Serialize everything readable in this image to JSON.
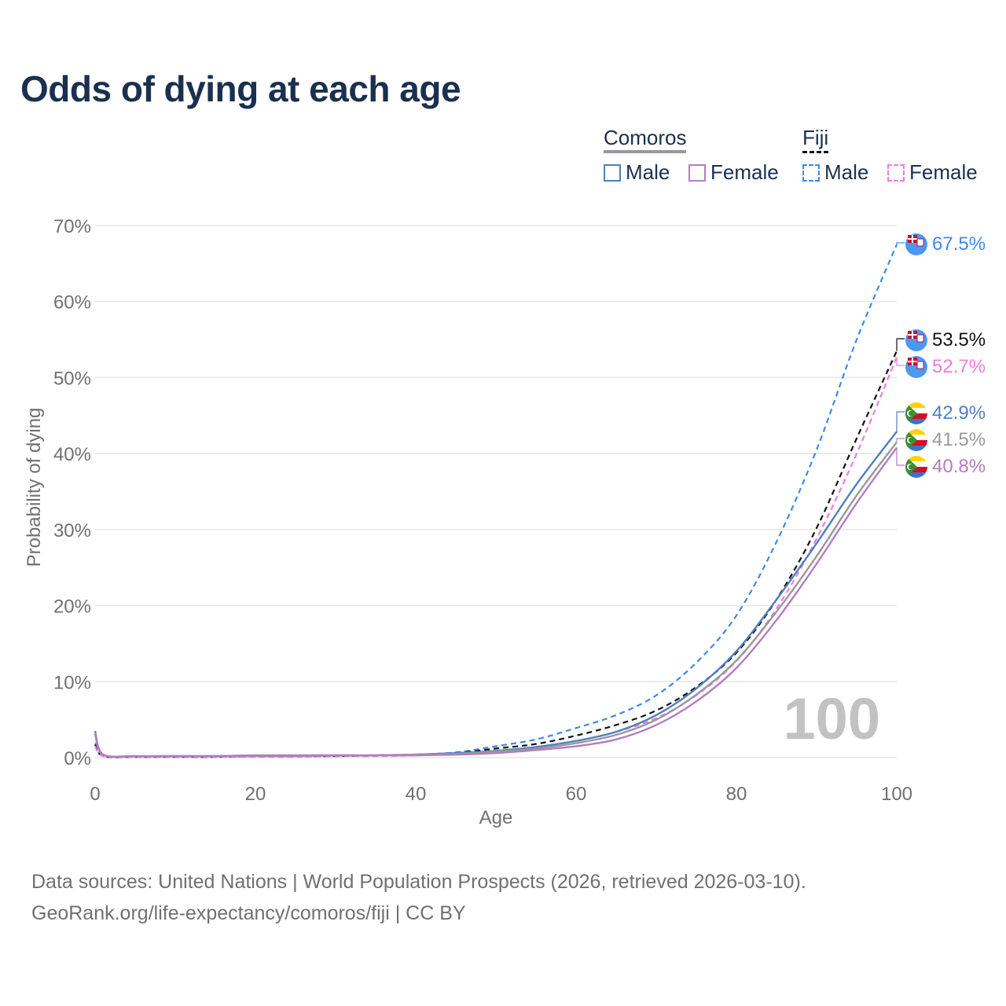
{
  "title": "Odds of dying at each age",
  "legend": {
    "groups": [
      {
        "name": "Comoros",
        "items": [
          {
            "label": "Male"
          },
          {
            "label": "Female"
          }
        ]
      },
      {
        "name": "Fiji",
        "items": [
          {
            "label": "Male"
          },
          {
            "label": "Female"
          }
        ]
      }
    ]
  },
  "colors": {
    "comoros_male": "#4f7fc0",
    "comoros_female": "#b47cc0",
    "comoros_total": "#999999",
    "fiji_male": "#3d8be8",
    "fiji_female": "#f07be0",
    "fiji_total": "#111111",
    "grid": "#e6e6e6",
    "axis_text": "#707070",
    "title": "#1b3050",
    "watermark": "#c2c2c2"
  },
  "chart_data": {
    "type": "line",
    "xlabel": "Age",
    "ylabel": "Probability of dying",
    "xlim": [
      0,
      100
    ],
    "ylim": [
      0,
      70
    ],
    "xticks": [
      "0",
      "20",
      "40",
      "60",
      "80",
      "100"
    ],
    "yticks": [
      "0%",
      "10%",
      "20%",
      "30%",
      "40%",
      "50%",
      "60%",
      "70%"
    ],
    "grid": true,
    "watermark": "100",
    "x": [
      0,
      1,
      5,
      10,
      15,
      20,
      25,
      30,
      35,
      40,
      45,
      50,
      55,
      60,
      65,
      70,
      75,
      80,
      85,
      90,
      95,
      100
    ],
    "series": [
      {
        "key": "fiji_male",
        "name": "Fiji Male",
        "dash": true,
        "end_label": "67.5%",
        "values": [
          1.9,
          0.2,
          0.1,
          0.1,
          0.1,
          0.2,
          0.2,
          0.2,
          0.3,
          0.4,
          0.7,
          1.5,
          2.4,
          3.9,
          5.6,
          8.2,
          12.5,
          18.7,
          28.4,
          40.5,
          55.0,
          67.5
        ]
      },
      {
        "key": "fiji_total",
        "name": "Fiji",
        "dash": true,
        "end_label": "53.5%",
        "values": [
          1.7,
          0.2,
          0.1,
          0.1,
          0.1,
          0.2,
          0.2,
          0.2,
          0.3,
          0.4,
          0.6,
          1.2,
          1.8,
          2.9,
          4.3,
          6.2,
          9.3,
          13.8,
          20.8,
          30.2,
          42.0,
          53.5
        ]
      },
      {
        "key": "fiji_female",
        "name": "Fiji Female",
        "dash": true,
        "end_label": "52.7%",
        "values": [
          1.5,
          0.2,
          0.1,
          0.1,
          0.1,
          0.1,
          0.1,
          0.2,
          0.2,
          0.3,
          0.5,
          0.9,
          1.4,
          2.2,
          3.4,
          5.2,
          8.2,
          12.7,
          19.6,
          28.8,
          40.0,
          52.7
        ]
      },
      {
        "key": "comoros_male",
        "name": "Comoros Male",
        "dash": false,
        "end_label": "42.9%",
        "values": [
          3.5,
          0.4,
          0.2,
          0.2,
          0.2,
          0.3,
          0.3,
          0.3,
          0.3,
          0.4,
          0.6,
          0.9,
          1.4,
          2.2,
          3.4,
          5.6,
          9.1,
          14.0,
          20.8,
          28.2,
          36.0,
          42.9
        ]
      },
      {
        "key": "comoros_total",
        "name": "Comoros",
        "dash": false,
        "end_label": "41.5%",
        "values": [
          3.3,
          0.4,
          0.2,
          0.2,
          0.2,
          0.3,
          0.3,
          0.3,
          0.3,
          0.4,
          0.5,
          0.8,
          1.2,
          1.9,
          3.0,
          5.0,
          8.3,
          12.8,
          19.2,
          26.5,
          34.5,
          41.5
        ]
      },
      {
        "key": "comoros_female",
        "name": "Comoros Female",
        "dash": false,
        "end_label": "40.8%",
        "values": [
          3.1,
          0.4,
          0.2,
          0.2,
          0.2,
          0.2,
          0.2,
          0.3,
          0.3,
          0.3,
          0.4,
          0.6,
          1.0,
          1.5,
          2.4,
          4.3,
          7.4,
          11.8,
          18.1,
          25.5,
          33.5,
          40.8
        ]
      }
    ]
  },
  "source": {
    "line1": "Data sources: United Nations | World Population Prospects (2026, retrieved 2026-03-10).",
    "line2": "GeoRank.org/life-expectancy/comoros/fiji | CC BY"
  }
}
